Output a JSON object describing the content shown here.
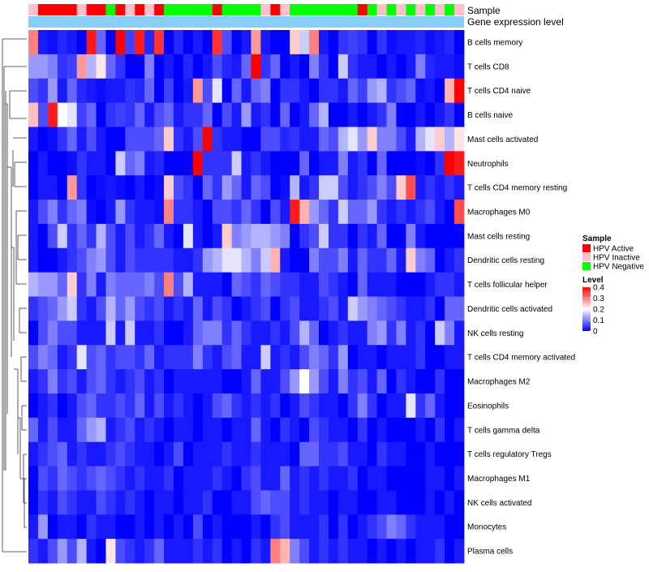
{
  "chart_data": {
    "type": "heatmap",
    "title": "",
    "annotation_labels": [
      "Sample",
      "Gene expression level"
    ],
    "rows": [
      "B cells memory",
      "T cells CD8",
      "T cells CD4 naive",
      "B cells naive",
      "Mast cells activated",
      "Neutrophils",
      "T cells CD4 memory resting",
      "Macrophages M0",
      "Mast cells resting",
      "Dendritic cells resting",
      "T cells follicular helper",
      "Dendritic cells activated",
      "NK cells resting",
      "T cells CD4 memory activated",
      "Macrophages M2",
      "Eosinophils",
      "T cells gamma delta",
      "T cells regulatory  Tregs",
      "Macrophages M1",
      "NK cells activated",
      "Monocytes",
      "Plasma cells"
    ],
    "sample_groups": [
      "Inactive",
      "Active",
      "Active",
      "Active",
      "Active",
      "Inactive",
      "Active",
      "Active",
      "Negative",
      "Active",
      "Inactive",
      "Active",
      "Inactive",
      "Active",
      "Negative",
      "Negative",
      "Negative",
      "Negative",
      "Negative",
      "Active",
      "Negative",
      "Negative",
      "Negative",
      "Negative",
      "Inactive",
      "Active",
      "Inactive",
      "Negative",
      "Negative",
      "Negative",
      "Negative",
      "Negative",
      "Negative",
      "Negative",
      "Active",
      "Negative",
      "Inactive",
      "Negative",
      "Inactive",
      "Negative",
      "Inactive",
      "Negative",
      "Inactive",
      "Negative",
      "Inactive"
    ],
    "values": [
      [
        0.3,
        0.02,
        0.01,
        0.03,
        0.02,
        0.0,
        0.38,
        0.08,
        0.0,
        0.4,
        0.05,
        0.38,
        0.03,
        0.36,
        0.0,
        0.03,
        0.0,
        0.02,
        0.0,
        0.36,
        0.06,
        0.0,
        0.02,
        0.28,
        0.02,
        0.0,
        0.0,
        0.24,
        0.16,
        0.3,
        0.02,
        0.0,
        0.04,
        0.05,
        0.04,
        0.0,
        0.04,
        0.01,
        0.02,
        0.02,
        0.03,
        0.01,
        0.02,
        0.03,
        0.0
      ],
      [
        0.12,
        0.12,
        0.1,
        0.04,
        0.05,
        0.28,
        0.14,
        0.22,
        0.08,
        0.04,
        0.0,
        0.0,
        0.1,
        0.0,
        0.02,
        0.0,
        0.03,
        0.0,
        0.02,
        0.06,
        0.03,
        0.02,
        0.08,
        0.4,
        0.04,
        0.08,
        0.0,
        0.02,
        0.0,
        0.1,
        0.04,
        0.0,
        0.16,
        0.04,
        0.02,
        0.02,
        0.0,
        0.02,
        0.0,
        0.02,
        0.1,
        0.03,
        0.02,
        0.02,
        0.01
      ],
      [
        0.06,
        0.04,
        0.12,
        0.02,
        0.08,
        0.03,
        0.02,
        0.01,
        0.02,
        0.02,
        0.04,
        0.03,
        0.08,
        0.0,
        0.05,
        0.0,
        0.02,
        0.28,
        0.06,
        0.18,
        0.0,
        0.08,
        0.02,
        0.08,
        0.1,
        0.0,
        0.04,
        0.04,
        0.02,
        0.0,
        0.04,
        0.04,
        0.02,
        0.08,
        0.05,
        0.12,
        0.14,
        0.04,
        0.06,
        0.08,
        0.01,
        0.02,
        0.0,
        0.26,
        0.4
      ],
      [
        0.25,
        0.06,
        0.38,
        0.2,
        0.18,
        0.05,
        0.08,
        0.0,
        0.04,
        0.05,
        0.04,
        0.08,
        0.02,
        0.06,
        0.08,
        0.02,
        0.04,
        0.04,
        0.08,
        0.0,
        0.06,
        0.02,
        0.12,
        0.02,
        0.04,
        0.0,
        0.08,
        0.0,
        0.02,
        0.08,
        0.14,
        0.0,
        0.0,
        0.02,
        0.0,
        0.02,
        0.04,
        0.1,
        0.0,
        0.0,
        0.02,
        0.0,
        0.02,
        0.04,
        0.0
      ],
      [
        0.02,
        0.0,
        0.01,
        0.04,
        0.08,
        0.02,
        0.06,
        0.02,
        0.0,
        0.0,
        0.06,
        0.06,
        0.06,
        0.08,
        0.24,
        0.04,
        0.02,
        0.06,
        0.4,
        0.04,
        0.02,
        0.02,
        0.0,
        0.0,
        0.06,
        0.06,
        0.03,
        0.04,
        0.02,
        0.02,
        0.08,
        0.06,
        0.14,
        0.18,
        0.12,
        0.24,
        0.1,
        0.1,
        0.06,
        0.02,
        0.14,
        0.18,
        0.24,
        0.14,
        0.22
      ],
      [
        0.0,
        0.02,
        0.0,
        0.0,
        0.01,
        0.04,
        0.02,
        0.02,
        0.0,
        0.16,
        0.08,
        0.1,
        0.02,
        0.03,
        0.0,
        0.0,
        0.0,
        0.4,
        0.04,
        0.04,
        0.04,
        0.16,
        0.02,
        0.04,
        0.02,
        0.0,
        0.0,
        0.0,
        0.08,
        0.0,
        0.02,
        0.02,
        0.1,
        0.02,
        0.04,
        0.0,
        0.08,
        0.0,
        0.0,
        0.0,
        0.01,
        0.0,
        0.04,
        0.4,
        0.38
      ],
      [
        0.0,
        0.02,
        0.02,
        0.0,
        0.28,
        0.04,
        0.0,
        0.01,
        0.02,
        0.01,
        0.0,
        0.02,
        0.0,
        0.01,
        0.24,
        0.06,
        0.04,
        0.0,
        0.08,
        0.04,
        0.12,
        0.08,
        0.02,
        0.08,
        0.06,
        0.0,
        0.01,
        0.14,
        0.02,
        0.04,
        0.16,
        0.16,
        0.06,
        0.02,
        0.04,
        0.06,
        0.1,
        0.06,
        0.24,
        0.34,
        0.02,
        0.04,
        0.02,
        0.04,
        0.02
      ],
      [
        0.02,
        0.06,
        0.1,
        0.04,
        0.08,
        0.1,
        0.01,
        0.0,
        0.02,
        0.12,
        0.04,
        0.02,
        0.02,
        0.01,
        0.3,
        0.04,
        0.04,
        0.02,
        0.0,
        0.06,
        0.06,
        0.04,
        0.08,
        0.04,
        0.0,
        0.06,
        0.02,
        0.38,
        0.26,
        0.12,
        0.08,
        0.04,
        0.16,
        0.08,
        0.08,
        0.12,
        0.04,
        0.02,
        0.04,
        0.02,
        0.04,
        0.06,
        0.02,
        0.0,
        0.34
      ],
      [
        0.02,
        0.0,
        0.06,
        0.16,
        0.04,
        0.08,
        0.04,
        0.14,
        0.06,
        0.02,
        0.06,
        0.02,
        0.04,
        0.08,
        0.02,
        0.0,
        0.18,
        0.02,
        0.0,
        0.02,
        0.24,
        0.1,
        0.12,
        0.14,
        0.14,
        0.12,
        0.1,
        0.0,
        0.04,
        0.06,
        0.16,
        0.04,
        0.04,
        0.0,
        0.04,
        0.02,
        0.08,
        0.0,
        0.0,
        0.1,
        0.02,
        0.0,
        0.0,
        0.0,
        0.0
      ],
      [
        0.02,
        0.0,
        0.0,
        0.02,
        0.04,
        0.06,
        0.1,
        0.12,
        0.06,
        0.02,
        0.06,
        0.04,
        0.04,
        0.04,
        0.04,
        0.02,
        0.02,
        0.04,
        0.12,
        0.14,
        0.18,
        0.18,
        0.14,
        0.1,
        0.16,
        0.26,
        0.02,
        0.0,
        0.0,
        0.1,
        0.06,
        0.06,
        0.1,
        0.02,
        0.08,
        0.04,
        0.04,
        0.08,
        0.02,
        0.24,
        0.1,
        0.08,
        0.0,
        0.02,
        0.04
      ],
      [
        0.14,
        0.12,
        0.12,
        0.08,
        0.24,
        0.04,
        0.1,
        0.02,
        0.1,
        0.08,
        0.08,
        0.08,
        0.1,
        0.06,
        0.3,
        0.06,
        0.14,
        0.02,
        0.02,
        0.02,
        0.0,
        0.08,
        0.06,
        0.04,
        0.08,
        0.06,
        0.04,
        0.04,
        0.02,
        0.02,
        0.06,
        0.04,
        0.02,
        0.0,
        0.08,
        0.02,
        0.02,
        0.02,
        0.0,
        0.0,
        0.0,
        0.02,
        0.04,
        0.04,
        0.02
      ],
      [
        0.04,
        0.06,
        0.08,
        0.12,
        0.16,
        0.04,
        0.02,
        0.06,
        0.14,
        0.08,
        0.12,
        0.06,
        0.04,
        0.06,
        0.02,
        0.04,
        0.02,
        0.08,
        0.02,
        0.06,
        0.04,
        0.0,
        0.02,
        0.04,
        0.06,
        0.0,
        0.04,
        0.06,
        0.02,
        0.02,
        0.04,
        0.06,
        0.02,
        0.16,
        0.12,
        0.1,
        0.08,
        0.06,
        0.04,
        0.02,
        0.02,
        0.04,
        0.0,
        0.08,
        0.08
      ],
      [
        0.0,
        0.06,
        0.1,
        0.06,
        0.06,
        0.02,
        0.02,
        0.02,
        0.16,
        0.02,
        0.16,
        0.02,
        0.02,
        0.04,
        0.0,
        0.0,
        0.02,
        0.08,
        0.1,
        0.1,
        0.04,
        0.08,
        0.04,
        0.02,
        0.02,
        0.04,
        0.02,
        0.06,
        0.14,
        0.08,
        0.0,
        0.02,
        0.04,
        0.02,
        0.02,
        0.1,
        0.12,
        0.04,
        0.1,
        0.02,
        0.04,
        0.0,
        0.16,
        0.1,
        0.02
      ],
      [
        0.06,
        0.1,
        0.08,
        0.02,
        0.04,
        0.18,
        0.06,
        0.08,
        0.04,
        0.06,
        0.06,
        0.04,
        0.08,
        0.02,
        0.04,
        0.04,
        0.04,
        0.1,
        0.04,
        0.02,
        0.06,
        0.08,
        0.02,
        0.02,
        0.16,
        0.02,
        0.04,
        0.02,
        0.06,
        0.1,
        0.08,
        0.04,
        0.12,
        0.0,
        0.02,
        0.02,
        0.0,
        0.02,
        0.02,
        0.02,
        0.04,
        0.0,
        0.0,
        0.02,
        0.02
      ],
      [
        0.02,
        0.04,
        0.1,
        0.04,
        0.06,
        0.02,
        0.06,
        0.08,
        0.04,
        0.02,
        0.04,
        0.06,
        0.02,
        0.04,
        0.0,
        0.02,
        0.02,
        0.02,
        0.02,
        0.02,
        0.0,
        0.0,
        0.02,
        0.08,
        0.02,
        0.02,
        0.06,
        0.12,
        0.2,
        0.12,
        0.06,
        0.02,
        0.1,
        0.04,
        0.06,
        0.02,
        0.08,
        0.0,
        0.04,
        0.02,
        0.0,
        0.0,
        0.04,
        0.0,
        0.0
      ],
      [
        0.0,
        0.02,
        0.04,
        0.0,
        0.02,
        0.06,
        0.08,
        0.04,
        0.04,
        0.06,
        0.04,
        0.08,
        0.02,
        0.06,
        0.02,
        0.04,
        0.02,
        0.0,
        0.02,
        0.06,
        0.08,
        0.04,
        0.02,
        0.04,
        0.02,
        0.04,
        0.0,
        0.02,
        0.06,
        0.04,
        0.02,
        0.02,
        0.0,
        0.04,
        0.1,
        0.04,
        0.0,
        0.02,
        0.02,
        0.18,
        0.04,
        0.08,
        0.02,
        0.0,
        0.0
      ],
      [
        0.08,
        0.02,
        0.06,
        0.02,
        0.02,
        0.08,
        0.12,
        0.14,
        0.02,
        0.04,
        0.06,
        0.02,
        0.04,
        0.02,
        0.0,
        0.02,
        0.02,
        0.0,
        0.02,
        0.02,
        0.0,
        0.02,
        0.02,
        0.08,
        0.02,
        0.0,
        0.04,
        0.02,
        0.0,
        0.06,
        0.04,
        0.02,
        0.02,
        0.0,
        0.04,
        0.0,
        0.02,
        0.0,
        0.0,
        0.0,
        0.02,
        0.0,
        0.04,
        0.0,
        0.02
      ],
      [
        0.02,
        0.04,
        0.06,
        0.08,
        0.02,
        0.04,
        0.02,
        0.02,
        0.04,
        0.06,
        0.04,
        0.02,
        0.02,
        0.0,
        0.02,
        0.06,
        0.0,
        0.02,
        0.02,
        0.02,
        0.04,
        0.02,
        0.02,
        0.04,
        0.02,
        0.02,
        0.02,
        0.0,
        0.08,
        0.08,
        0.04,
        0.04,
        0.06,
        0.02,
        0.02,
        0.0,
        0.04,
        0.02,
        0.02,
        0.0,
        0.0,
        0.02,
        0.0,
        0.0,
        0.0
      ],
      [
        0.0,
        0.06,
        0.04,
        0.08,
        0.06,
        0.04,
        0.06,
        0.08,
        0.06,
        0.04,
        0.02,
        0.04,
        0.02,
        0.02,
        0.04,
        0.0,
        0.02,
        0.02,
        0.02,
        0.04,
        0.02,
        0.0,
        0.04,
        0.06,
        0.02,
        0.02,
        0.08,
        0.02,
        0.04,
        0.02,
        0.04,
        0.02,
        0.02,
        0.04,
        0.0,
        0.02,
        0.02,
        0.0,
        0.0,
        0.0,
        0.0,
        0.02,
        0.02,
        0.0,
        0.02
      ],
      [
        0.0,
        0.04,
        0.02,
        0.06,
        0.04,
        0.02,
        0.02,
        0.06,
        0.04,
        0.02,
        0.04,
        0.02,
        0.0,
        0.02,
        0.02,
        0.0,
        0.02,
        0.02,
        0.04,
        0.0,
        0.0,
        0.02,
        0.02,
        0.06,
        0.08,
        0.06,
        0.06,
        0.02,
        0.04,
        0.02,
        0.02,
        0.0,
        0.02,
        0.02,
        0.0,
        0.0,
        0.02,
        0.02,
        0.0,
        0.0,
        0.0,
        0.02,
        0.0,
        0.02,
        0.0
      ],
      [
        0.02,
        0.12,
        0.0,
        0.02,
        0.02,
        0.0,
        0.04,
        0.02,
        0.02,
        0.0,
        0.0,
        0.02,
        0.0,
        0.02,
        0.0,
        0.02,
        0.0,
        0.06,
        0.0,
        0.02,
        0.0,
        0.0,
        0.0,
        0.02,
        0.0,
        0.04,
        0.06,
        0.02,
        0.02,
        0.02,
        0.04,
        0.0,
        0.04,
        0.0,
        0.02,
        0.04,
        0.06,
        0.1,
        0.08,
        0.04,
        0.02,
        0.02,
        0.02,
        0.0,
        0.0
      ],
      [
        0.04,
        0.02,
        0.06,
        0.12,
        0.06,
        0.14,
        0.02,
        0.0,
        0.22,
        0.06,
        0.04,
        0.02,
        0.04,
        0.08,
        0.02,
        0.02,
        0.02,
        0.04,
        0.02,
        0.04,
        0.0,
        0.02,
        0.0,
        0.04,
        0.02,
        0.3,
        0.26,
        0.1,
        0.06,
        0.02,
        0.04,
        0.02,
        0.04,
        0.02,
        0.02,
        0.0,
        0.02,
        0.0,
        0.02,
        0.0,
        0.02,
        0.02,
        0.04,
        0.0,
        0.02
      ]
    ],
    "group_colors": {
      "Active": "#ff0000",
      "Inactive": "#ffc0cb",
      "Negative": "#00ff00"
    },
    "expression_bar_color": "#87cefa",
    "color_scale": {
      "min": 0,
      "mid": 0.2,
      "max": 0.4,
      "low": "#0000ff",
      "mid_color": "#ffffff",
      "high": "#ff0000"
    },
    "legend": {
      "sample_title": "Sample",
      "sample_items": [
        {
          "label": "HPV Active",
          "group": "Active"
        },
        {
          "label": "HPV Inactive",
          "group": "Inactive"
        },
        {
          "label": "HPV Negative",
          "group": "Negative"
        }
      ],
      "level_title": "Level",
      "level_ticks": [
        "0.4",
        "0.3",
        "0.2",
        "0.1",
        "0"
      ]
    }
  }
}
